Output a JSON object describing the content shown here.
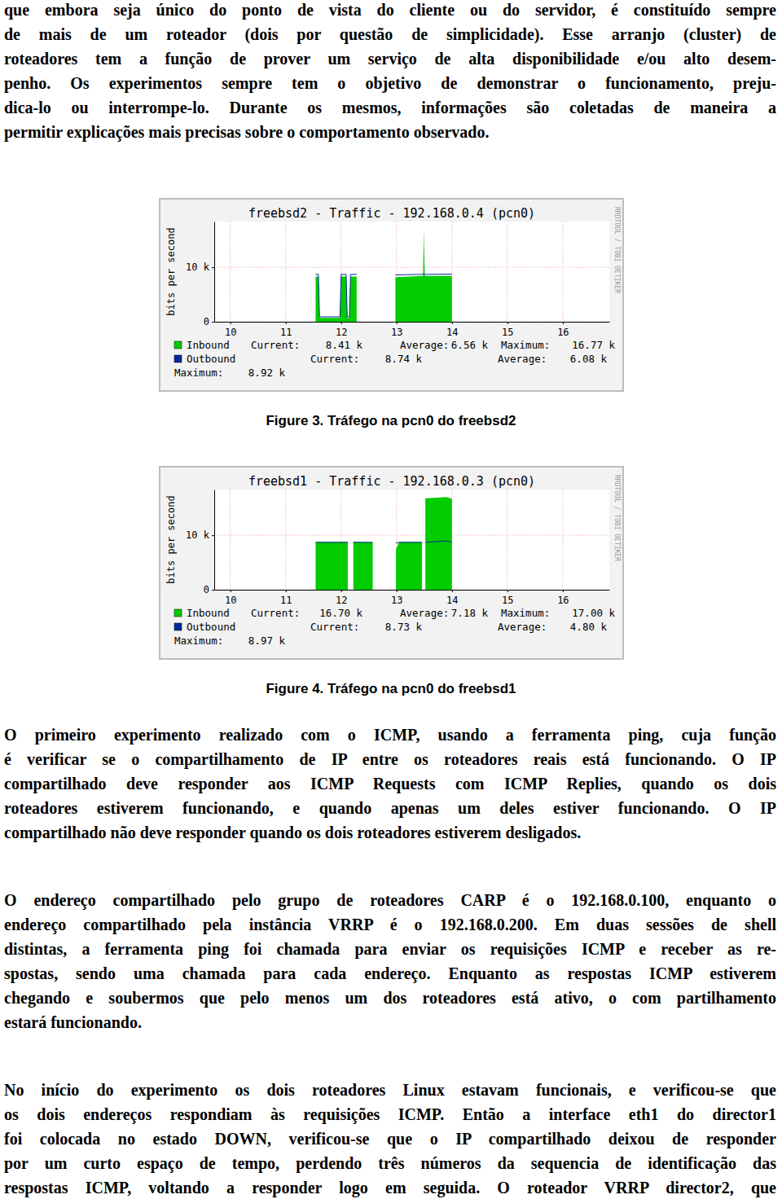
{
  "document": {
    "paragraphs": [
      [
        "que embora seja único do ponto de vista do cliente ou do servidor, é constituído sempre",
        "de mais de um roteador (dois por questão de simplicidade). Esse arranjo (cluster) de",
        "roteadores tem a função de prover um serviço de alta disponibilidade e/ou alto desem-",
        "penho. Os experimentos sempre tem o objetivo de demonstrar o funcionamento, preju-",
        "dica-lo ou interrompe-lo. Durante os mesmos, informações são coletadas de maneira a",
        "permitir explicações mais precisas sobre o comportamento observado."
      ],
      [
        "O primeiro experimento realizado com o ICMP, usando a ferramenta ping, cuja função",
        "é verificar se o compartilhamento de IP entre os roteadores reais está funcionando. O IP",
        "compartilhado deve responder aos ICMP Requests com ICMP Replies, quando os dois",
        "roteadores estiverem funcionando, e quando apenas um deles estiver funcionando. O IP",
        "compartilhado não deve responder quando os dois roteadores estiverem desligados."
      ],
      [
        "O endereço compartilhado pelo grupo de roteadores CARP é o 192.168.0.100, enquanto o",
        "endereço compartilhado pela instância VRRP é o 192.168.0.200. Em duas sessões de shell",
        "distintas, a ferramenta ping foi chamada para enviar os requisições ICMP e receber as re-",
        "spostas, sendo uma chamada para cada endereço. Enquanto as respostas ICMP estiverem",
        "chegando e soubermos que pelo menos um dos roteadores está ativo, o com partilhamento",
        "estará funcionando."
      ],
      [
        "No início do experimento os dois roteadores Linux estavam funcionais, e verificou-se que",
        "os dois endereços respondiam às requisições ICMP. Então a interface eth1 do director1",
        "foi colocada no estado DOWN, verificou-se que o IP compartilhado deixou de responder",
        "por um curto espaço de tempo, perdendo três números da sequencia de identificação das",
        "respostas ICMP, voltando a responder logo em seguida. O roteador VRRP director2, que"
      ]
    ],
    "captions": [
      "Figure 3. Tráfego na pcn0 do freebsd2",
      "Figure 4. Tráfego na pcn0 do freebsd1"
    ]
  },
  "chart_data": [
    {
      "type": "area",
      "title": "freebsd2 - Traffic - 192.168.0.4 (pcn0)",
      "y_label": "bits per second",
      "annotations": [
        "RRDTOOL / TOBI OETIKER"
      ],
      "x": [
        11.54,
        11.59,
        11.61,
        11.98,
        12.0,
        12.09,
        12.11,
        12.15,
        12.17,
        12.28,
        12.3,
        12.98,
        13.48,
        13.49,
        13.51,
        14.0
      ],
      "series": [
        {
          "name": "Inbound",
          "color": "#00cc00",
          "type": "area",
          "values": [
            8300,
            8300,
            700,
            700,
            8300,
            8300,
            700,
            700,
            8300,
            8300,
            null,
            8200,
            8400,
            16770,
            8400,
            8410
          ],
          "stats": [
            [
              "Current:",
              "8.41 k"
            ],
            [
              "Average:",
              "6.56 k"
            ],
            [
              "Maximum:",
              "16.77 k"
            ]
          ]
        },
        {
          "name": "Outbound",
          "color": "#002a97",
          "type": "line",
          "values": [
            8700,
            8700,
            900,
            900,
            8700,
            8700,
            900,
            900,
            8700,
            8700,
            null,
            8600,
            8700,
            8900,
            8700,
            8740
          ],
          "stats": [
            [
              "Current:",
              "8.74 k"
            ],
            [
              "Average:",
              "6.08 k"
            ],
            [
              "Maximum:",
              "8.92 k"
            ]
          ]
        }
      ],
      "xlim": [
        9.71,
        16.84
      ],
      "xticks": [
        10,
        11,
        12,
        13,
        14,
        15,
        16
      ],
      "ylim": [
        0,
        18400
      ],
      "yticks": [
        0,
        {
          "value": 10000,
          "label": "10 k"
        }
      ],
      "grid": true
    },
    {
      "type": "area",
      "title": "freebsd1 - Traffic - 192.168.0.3 (pcn0)",
      "y_label": "bits per second",
      "annotations": [
        "RRDTOOL / TOBI OETIKER"
      ],
      "x": [
        11.54,
        12.12,
        12.14,
        12.22,
        12.57,
        12.59,
        12.99,
        13.05,
        13.46,
        13.48,
        13.52,
        13.9,
        14.0
      ],
      "series": [
        {
          "name": "Inbound",
          "color": "#00cc00",
          "type": "area",
          "values": [
            8800,
            8800,
            null,
            8800,
            8700,
            null,
            7500,
            8800,
            8800,
            null,
            16800,
            17000,
            16700
          ],
          "stats": [
            [
              "Current:",
              "16.70 k"
            ],
            [
              "Average:",
              "7.18 k"
            ],
            [
              "Maximum:",
              "17.00 k"
            ]
          ]
        },
        {
          "name": "Outbound",
          "color": "#002a97",
          "type": "line",
          "values": [
            8700,
            8700,
            null,
            8700,
            8700,
            null,
            8600,
            8700,
            8700,
            null,
            8700,
            8970,
            8730
          ],
          "stats": [
            [
              "Current:",
              "8.73 k"
            ],
            [
              "Average:",
              "4.80 k"
            ],
            [
              "Maximum:",
              "8.97 k"
            ]
          ]
        }
      ],
      "xlim": [
        9.71,
        16.84
      ],
      "xticks": [
        10,
        11,
        12,
        13,
        14,
        15,
        16
      ],
      "ylim": [
        0,
        18400
      ],
      "yticks": [
        0,
        {
          "value": 10000,
          "label": "10 k"
        }
      ],
      "grid": true
    }
  ]
}
